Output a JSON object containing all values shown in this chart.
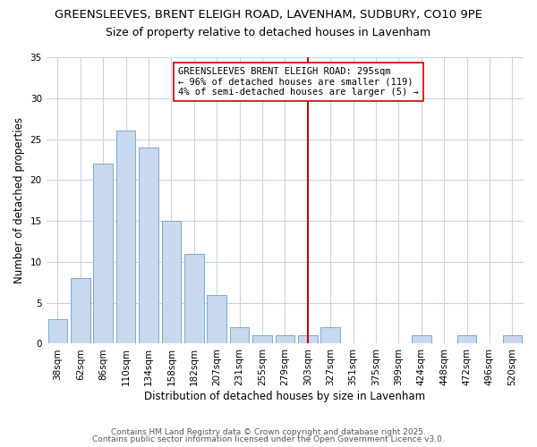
{
  "title_line1": "GREENSLEEVES, BRENT ELEIGH ROAD, LAVENHAM, SUDBURY, CO10 9PE",
  "title_line2": "Size of property relative to detached houses in Lavenham",
  "xlabel": "Distribution of detached houses by size in Lavenham",
  "ylabel": "Number of detached properties",
  "categories": [
    "38sqm",
    "62sqm",
    "86sqm",
    "110sqm",
    "134sqm",
    "158sqm",
    "182sqm",
    "207sqm",
    "231sqm",
    "255sqm",
    "279sqm",
    "303sqm",
    "327sqm",
    "351sqm",
    "375sqm",
    "399sqm",
    "424sqm",
    "448sqm",
    "472sqm",
    "496sqm",
    "520sqm"
  ],
  "values": [
    3,
    8,
    22,
    26,
    24,
    15,
    11,
    6,
    2,
    1,
    1,
    1,
    2,
    0,
    0,
    0,
    1,
    0,
    1,
    0,
    1
  ],
  "bar_color": "#c8d8ee",
  "bar_edge_color": "#7aaad0",
  "grid_color": "#c8d4e4",
  "background_color": "#ffffff",
  "vline_x_index": 11.0,
  "vline_color": "#cc0000",
  "annotation_text": "GREENSLEEVES BRENT ELEIGH ROAD: 295sqm\n← 96% of detached houses are smaller (119)\n4% of semi-detached houses are larger (5) →",
  "annotation_box_color": "#ffffff",
  "annotation_box_edge": "#cc0000",
  "ylim": [
    0,
    35
  ],
  "yticks": [
    0,
    5,
    10,
    15,
    20,
    25,
    30,
    35
  ],
  "footer_line1": "Contains HM Land Registry data © Crown copyright and database right 2025.",
  "footer_line2": "Contains public sector information licensed under the Open Government Licence v3.0.",
  "title_fontsize": 9.5,
  "subtitle_fontsize": 9,
  "axis_label_fontsize": 8.5,
  "tick_fontsize": 7.5,
  "annotation_fontsize": 7.5,
  "footer_fontsize": 6.5
}
